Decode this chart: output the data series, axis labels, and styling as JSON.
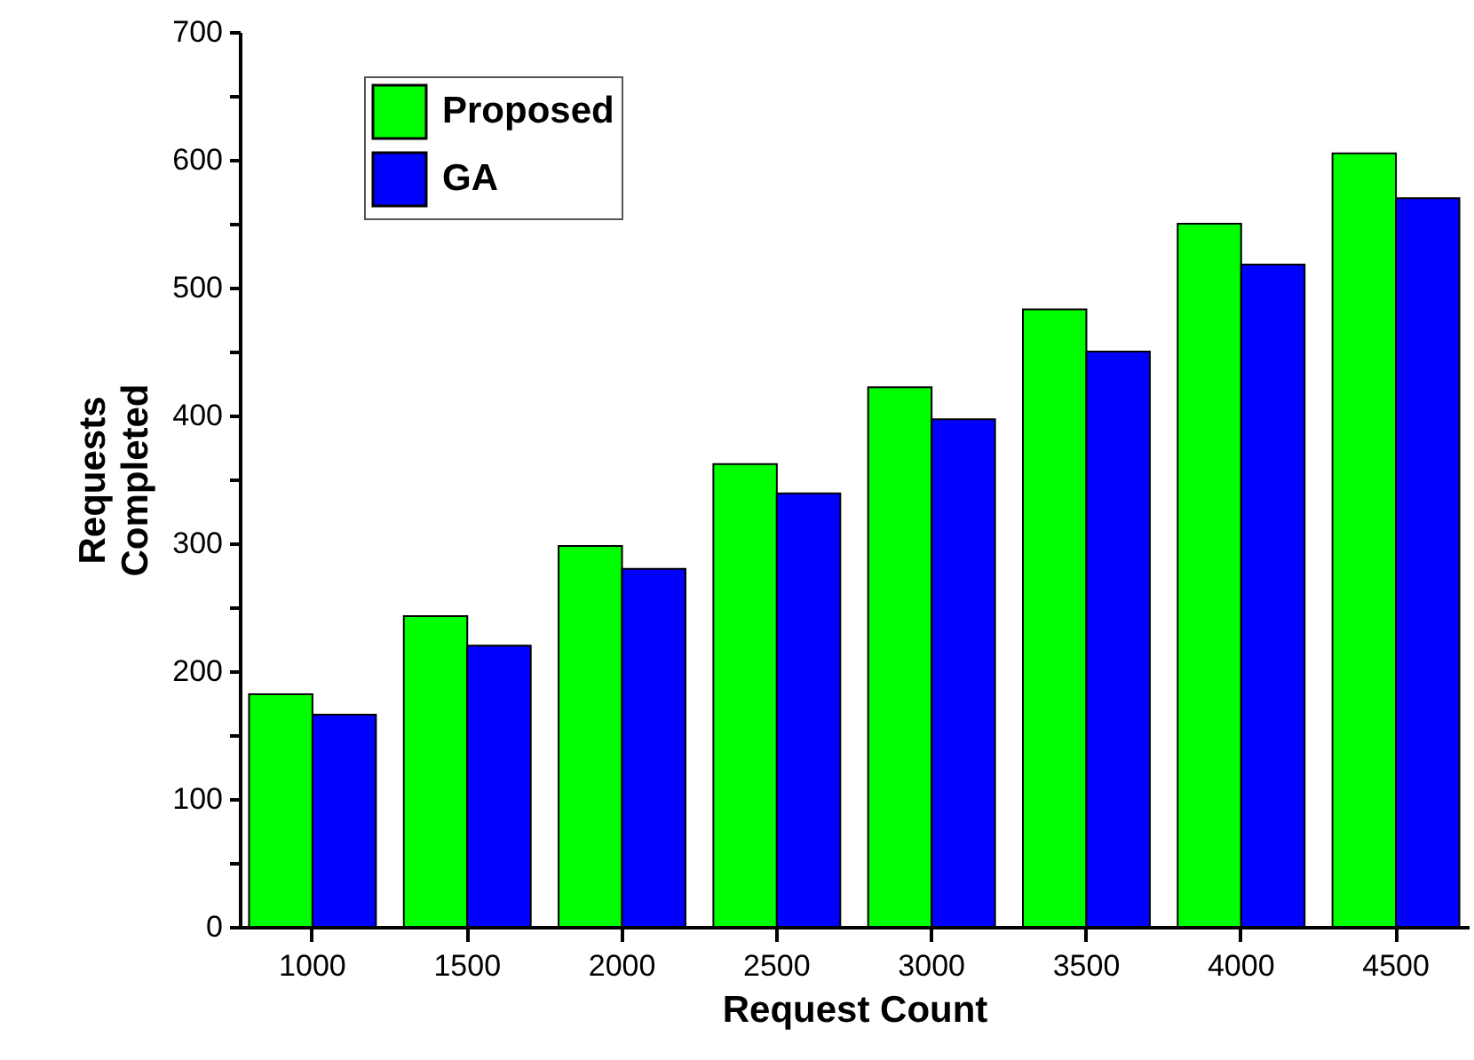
{
  "chart_data": {
    "type": "bar",
    "xlabel": "Request Count",
    "ylabel": "Requests Completed",
    "categories": [
      "1000",
      "1500",
      "2000",
      "2500",
      "3000",
      "3500",
      "4000",
      "4500"
    ],
    "series": [
      {
        "name": "Proposed",
        "color": "#00ff00",
        "values": [
          182,
          243,
          298,
          362,
          422,
          483,
          550,
          605
        ]
      },
      {
        "name": "GA",
        "color": "#0000ff",
        "values": [
          166,
          220,
          280,
          339,
          397,
          450,
          518,
          570
        ]
      }
    ],
    "ylim": [
      0,
      700
    ],
    "yticks": [
      0,
      {
        "value": 50,
        "label": null
      },
      100,
      {
        "value": 150,
        "label": null
      },
      200,
      {
        "value": 250,
        "label": null
      },
      300,
      {
        "value": 350,
        "label": null
      },
      400,
      {
        "value": 450,
        "label": null
      },
      500,
      {
        "value": 550,
        "label": null
      },
      600,
      {
        "value": 650,
        "label": null
      },
      700
    ],
    "grid": false,
    "legend": "top left"
  }
}
